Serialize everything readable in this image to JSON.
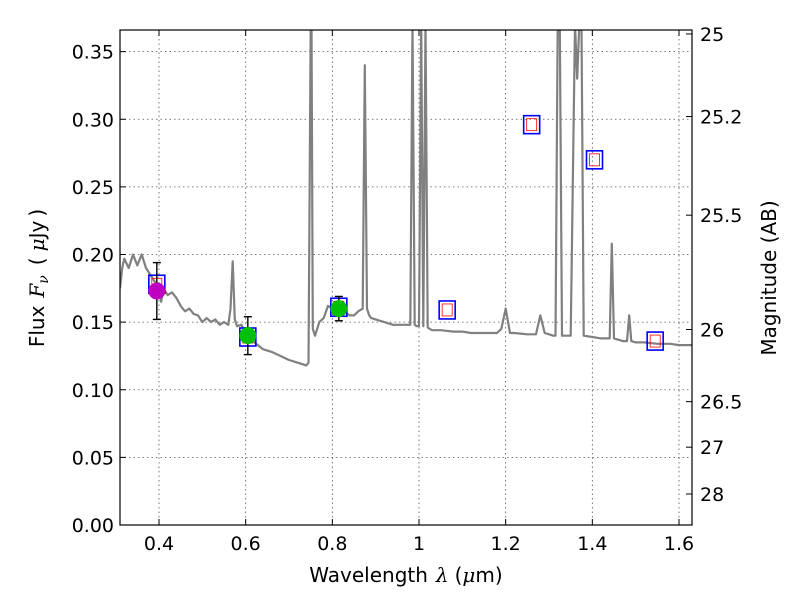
{
  "chart_data": {
    "type": "line",
    "title": "",
    "xlabel": {
      "prefix": "Wavelength",
      "symbol": "λ",
      "unit_open": "(",
      "unit_mu": "μ",
      "unit_rest": "m)"
    },
    "ylabel": {
      "prefix": "Flux",
      "symbol": "F",
      "subscript": "ν",
      "unit_open": "(",
      "unit_mu": "μ",
      "unit_rest": "Jy",
      "unit_close": ")"
    },
    "y2label": "Magnitude (AB)",
    "xlim": [
      0.31,
      1.63
    ],
    "ylim": [
      0.0,
      0.366
    ],
    "grid": true,
    "x_ticks": [
      {
        "value": 0.4,
        "label": "0.4"
      },
      {
        "value": 0.6,
        "label": "0.6"
      },
      {
        "value": 0.8,
        "label": "0.8"
      },
      {
        "value": 1.0,
        "label": "1"
      },
      {
        "value": 1.2,
        "label": "1.2"
      },
      {
        "value": 1.4,
        "label": "1.4"
      },
      {
        "value": 1.6,
        "label": "1.6"
      }
    ],
    "y_ticks": [
      {
        "value": 0.0,
        "label": "0.00"
      },
      {
        "value": 0.05,
        "label": "0.05"
      },
      {
        "value": 0.1,
        "label": "0.10"
      },
      {
        "value": 0.15,
        "label": "0.15"
      },
      {
        "value": 0.2,
        "label": "0.20"
      },
      {
        "value": 0.25,
        "label": "0.25"
      },
      {
        "value": 0.3,
        "label": "0.30"
      },
      {
        "value": 0.35,
        "label": "0.35"
      }
    ],
    "mag_ticks": [
      {
        "value": 25,
        "label": "25"
      },
      {
        "value": 25.2,
        "label": "25.2"
      },
      {
        "value": 25.5,
        "label": "25.5"
      },
      {
        "value": 26,
        "label": "26"
      },
      {
        "value": 26.5,
        "label": "26.5"
      },
      {
        "value": 27,
        "label": "27"
      },
      {
        "value": 28,
        "label": "28"
      }
    ],
    "colors": {
      "spectrum": "#808080",
      "model_box": "#0000ff",
      "model_box_inner": "#ff0000",
      "obs_green": "#00c000",
      "obs_magenta": "#c000c0",
      "errorbar": "#000000",
      "grid": "#555555"
    },
    "series": [
      {
        "name": "model spectrum",
        "x": [
          0.31,
          0.315,
          0.32,
          0.33,
          0.34,
          0.35,
          0.36,
          0.37,
          0.38,
          0.39,
          0.4,
          0.405,
          0.41,
          0.42,
          0.43,
          0.44,
          0.45,
          0.46,
          0.47,
          0.48,
          0.49,
          0.5,
          0.51,
          0.52,
          0.53,
          0.54,
          0.55,
          0.56,
          0.565,
          0.57,
          0.575,
          0.58,
          0.59,
          0.6,
          0.62,
          0.64,
          0.66,
          0.68,
          0.7,
          0.72,
          0.74,
          0.745,
          0.75,
          0.752,
          0.755,
          0.76,
          0.765,
          0.77,
          0.78,
          0.79,
          0.8,
          0.81,
          0.82,
          0.83,
          0.84,
          0.85,
          0.86,
          0.87,
          0.875,
          0.88,
          0.885,
          0.89,
          0.9,
          0.92,
          0.94,
          0.96,
          0.98,
          0.985,
          0.99,
          0.995,
          1.0,
          1.005,
          1.01,
          1.015,
          1.02,
          1.025,
          1.03,
          1.05,
          1.08,
          1.1,
          1.12,
          1.15,
          1.18,
          1.19,
          1.2,
          1.21,
          1.22,
          1.25,
          1.27,
          1.28,
          1.29,
          1.3,
          1.31,
          1.315,
          1.32,
          1.325,
          1.33,
          1.35,
          1.36,
          1.365,
          1.37,
          1.375,
          1.38,
          1.4,
          1.42,
          1.44,
          1.445,
          1.45,
          1.46,
          1.47,
          1.48,
          1.485,
          1.49,
          1.5,
          1.52,
          1.55,
          1.58,
          1.6,
          1.63
        ],
        "y": [
          0.175,
          0.19,
          0.197,
          0.19,
          0.2,
          0.192,
          0.2,
          0.19,
          0.185,
          0.18,
          0.176,
          0.165,
          0.175,
          0.17,
          0.172,
          0.168,
          0.162,
          0.158,
          0.16,
          0.156,
          0.155,
          0.15,
          0.153,
          0.15,
          0.152,
          0.148,
          0.15,
          0.148,
          0.16,
          0.195,
          0.152,
          0.147,
          0.148,
          0.142,
          0.135,
          0.13,
          0.128,
          0.125,
          0.122,
          0.12,
          0.118,
          0.12,
          0.37,
          0.37,
          0.145,
          0.14,
          0.145,
          0.15,
          0.153,
          0.162,
          0.16,
          0.155,
          0.163,
          0.157,
          0.155,
          0.155,
          0.158,
          0.16,
          0.34,
          0.16,
          0.155,
          0.153,
          0.152,
          0.15,
          0.148,
          0.148,
          0.148,
          0.37,
          0.148,
          0.147,
          0.147,
          0.37,
          0.147,
          0.37,
          0.146,
          0.145,
          0.144,
          0.144,
          0.143,
          0.143,
          0.142,
          0.142,
          0.142,
          0.145,
          0.16,
          0.142,
          0.142,
          0.141,
          0.141,
          0.155,
          0.142,
          0.141,
          0.14,
          0.14,
          0.37,
          0.37,
          0.14,
          0.14,
          0.37,
          0.33,
          0.37,
          0.37,
          0.14,
          0.139,
          0.138,
          0.138,
          0.208,
          0.138,
          0.137,
          0.136,
          0.136,
          0.155,
          0.136,
          0.135,
          0.135,
          0.134,
          0.134,
          0.133,
          0.133
        ]
      },
      {
        "name": "model photometry",
        "x": [
          0.395,
          0.605,
          0.815,
          1.065,
          1.26,
          1.405,
          1.545
        ],
        "y": [
          0.178,
          0.139,
          0.161,
          0.159,
          0.296,
          0.27,
          0.136
        ]
      },
      {
        "name": "observed",
        "x": [
          0.395,
          0.605,
          0.815
        ],
        "y": [
          0.173,
          0.14,
          0.16
        ],
        "yerr": [
          0.021,
          0.014,
          0.009
        ],
        "colors": [
          "obs_magenta",
          "obs_green",
          "obs_green"
        ]
      }
    ]
  }
}
